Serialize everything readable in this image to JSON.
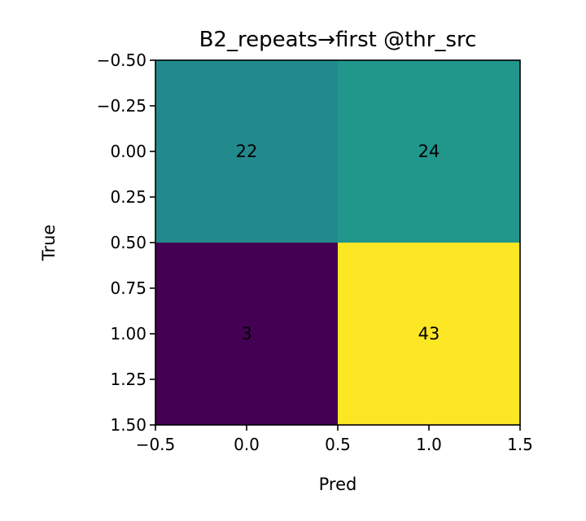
{
  "chart_data": {
    "type": "heatmap",
    "title": "B2_repeats→first @thr_src",
    "xlabel": "Pred",
    "ylabel": "True",
    "x_ticks": [
      "−0.5",
      "0.0",
      "0.5",
      "1.0",
      "1.5"
    ],
    "y_ticks": [
      "−0.50",
      "−0.25",
      "0.00",
      "0.25",
      "0.50",
      "0.75",
      "1.00",
      "1.25",
      "1.50"
    ],
    "xlim": [
      -0.5,
      1.5
    ],
    "ylim": [
      1.5,
      -0.5
    ],
    "rows": [
      "0",
      "1"
    ],
    "cols": [
      "0",
      "1"
    ],
    "matrix": [
      [
        22,
        24
      ],
      [
        3,
        43
      ]
    ],
    "colormap": "viridis",
    "colors": [
      [
        "#228a8d",
        "#21968b"
      ],
      [
        "#440154",
        "#fde725"
      ]
    ],
    "grid": false
  }
}
